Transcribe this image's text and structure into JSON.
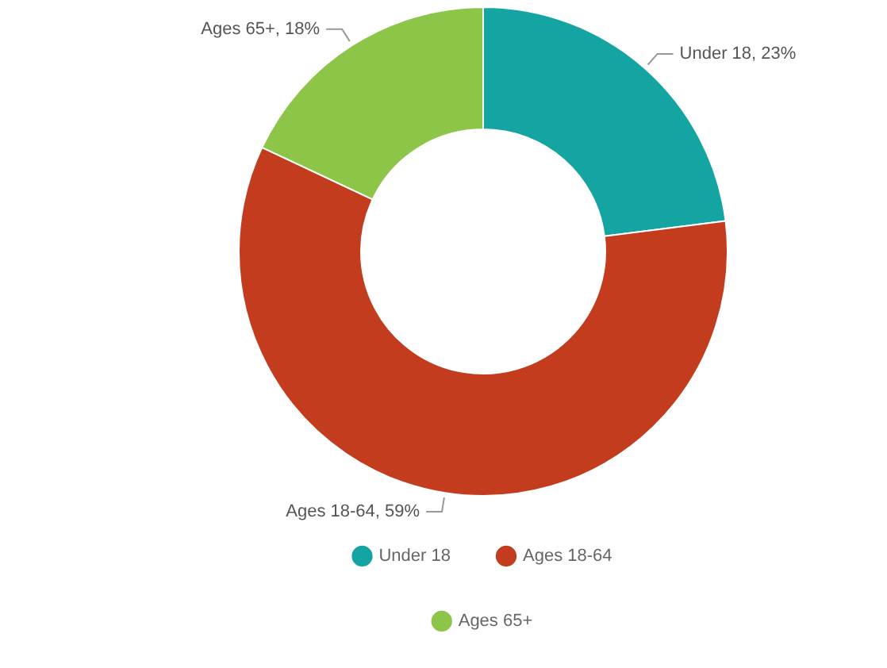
{
  "chart_data": {
    "type": "donut",
    "categories": [
      "Under 18",
      "Ages 18-64",
      "Ages 65+"
    ],
    "values": [
      23,
      59,
      18
    ],
    "colors": [
      "#14a5a3",
      "#c23c1d",
      "#8cc548"
    ],
    "value_labels": [
      "Under 18, 23%",
      "Ages 18-64, 59%",
      "Ages 65+, 18%"
    ],
    "legend": "bottom"
  }
}
